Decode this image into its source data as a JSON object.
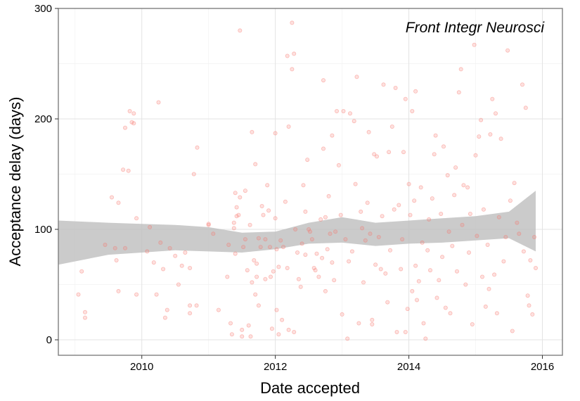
{
  "chart_data": {
    "type": "scatter",
    "title": "",
    "annotation": "Front Integr Neurosci",
    "xlabel": "Date accepted",
    "ylabel": "Acceptance delay (days)",
    "xlim": [
      2008.75,
      2016.3
    ],
    "ylim": [
      -14,
      300
    ],
    "x_ticks": [
      2010,
      2012,
      2014,
      2016
    ],
    "y_ticks": [
      0,
      100,
      200,
      300
    ],
    "grid": true,
    "point_color": "#F8766D",
    "ribbon_color": "#BEBEBE",
    "smooth": {
      "x": [
        2008.75,
        2009.5,
        2010.0,
        2010.5,
        2011.0,
        2011.5,
        2012.0,
        2012.5,
        2013.0,
        2013.5,
        2014.0,
        2014.5,
        2015.0,
        2015.5,
        2015.9
      ],
      "lower": [
        68,
        77,
        79,
        81,
        80,
        79,
        82,
        87,
        88,
        85,
        87,
        88,
        90,
        92,
        80
      ],
      "upper": [
        108,
        106,
        105,
        104,
        102,
        97,
        98,
        106,
        111,
        106,
        108,
        110,
        112,
        116,
        135
      ]
    },
    "points": [
      [
        2009.05,
        41
      ],
      [
        2009.1,
        62
      ],
      [
        2009.15,
        25
      ],
      [
        2009.15,
        20
      ],
      [
        2009.45,
        86
      ],
      [
        2009.55,
        129
      ],
      [
        2009.6,
        83
      ],
      [
        2009.62,
        72
      ],
      [
        2009.65,
        44
      ],
      [
        2009.65,
        124
      ],
      [
        2009.72,
        154
      ],
      [
        2009.75,
        192
      ],
      [
        2009.75,
        83
      ],
      [
        2009.8,
        153
      ],
      [
        2009.82,
        207
      ],
      [
        2009.85,
        197
      ],
      [
        2009.88,
        205
      ],
      [
        2009.88,
        196
      ],
      [
        2009.92,
        110
      ],
      [
        2009.92,
        41
      ],
      [
        2010.08,
        80
      ],
      [
        2010.12,
        102
      ],
      [
        2010.18,
        70
      ],
      [
        2010.22,
        41
      ],
      [
        2010.25,
        215
      ],
      [
        2010.28,
        88
      ],
      [
        2010.32,
        64
      ],
      [
        2010.35,
        20
      ],
      [
        2010.38,
        27
      ],
      [
        2010.42,
        83
      ],
      [
        2010.5,
        76
      ],
      [
        2010.55,
        50
      ],
      [
        2010.6,
        67
      ],
      [
        2010.65,
        79
      ],
      [
        2010.72,
        65
      ],
      [
        2010.72,
        31
      ],
      [
        2010.72,
        24
      ],
      [
        2010.78,
        150
      ],
      [
        2010.82,
        31
      ],
      [
        2010.83,
        174
      ],
      [
        2011.0,
        105
      ],
      [
        2011.0,
        104
      ],
      [
        2011.07,
        96
      ],
      [
        2011.15,
        27
      ],
      [
        2011.28,
        57
      ],
      [
        2011.3,
        86
      ],
      [
        2011.33,
        15
      ],
      [
        2011.35,
        5
      ],
      [
        2011.38,
        106
      ],
      [
        2011.38,
        101
      ],
      [
        2011.4,
        78
      ],
      [
        2011.4,
        133
      ],
      [
        2011.42,
        112
      ],
      [
        2011.42,
        120
      ],
      [
        2011.45,
        113
      ],
      [
        2011.47,
        129
      ],
      [
        2011.47,
        280
      ],
      [
        2011.5,
        9
      ],
      [
        2011.5,
        3
      ],
      [
        2011.52,
        84
      ],
      [
        2011.55,
        135
      ],
      [
        2011.55,
        91
      ],
      [
        2011.58,
        63
      ],
      [
        2011.6,
        13
      ],
      [
        2011.62,
        104
      ],
      [
        2011.63,
        3
      ],
      [
        2011.65,
        52
      ],
      [
        2011.65,
        188
      ],
      [
        2011.68,
        72
      ],
      [
        2011.7,
        41
      ],
      [
        2011.7,
        159
      ],
      [
        2011.72,
        69
      ],
      [
        2011.72,
        57
      ],
      [
        2011.75,
        92
      ],
      [
        2011.75,
        31
      ],
      [
        2011.78,
        84
      ],
      [
        2011.8,
        121
      ],
      [
        2011.82,
        113
      ],
      [
        2011.85,
        91
      ],
      [
        2011.85,
        55
      ],
      [
        2011.88,
        140
      ],
      [
        2011.9,
        117
      ],
      [
        2011.92,
        84
      ],
      [
        2011.93,
        57
      ],
      [
        2011.95,
        10
      ],
      [
        2011.97,
        62
      ],
      [
        2012.0,
        110
      ],
      [
        2012.0,
        187
      ],
      [
        2012.02,
        82
      ],
      [
        2012.02,
        27
      ],
      [
        2012.05,
        66
      ],
      [
        2012.05,
        5
      ],
      [
        2012.08,
        90
      ],
      [
        2012.1,
        18
      ],
      [
        2012.12,
        84
      ],
      [
        2012.15,
        125
      ],
      [
        2012.18,
        257
      ],
      [
        2012.18,
        65
      ],
      [
        2012.2,
        193
      ],
      [
        2012.2,
        9
      ],
      [
        2012.25,
        287
      ],
      [
        2012.25,
        245
      ],
      [
        2012.28,
        259
      ],
      [
        2012.28,
        7
      ],
      [
        2012.3,
        100
      ],
      [
        2012.33,
        79
      ],
      [
        2012.35,
        55
      ],
      [
        2012.38,
        48
      ],
      [
        2012.4,
        87
      ],
      [
        2012.42,
        140
      ],
      [
        2012.45,
        116
      ],
      [
        2012.45,
        77
      ],
      [
        2012.48,
        163
      ],
      [
        2012.5,
        100
      ],
      [
        2012.52,
        98
      ],
      [
        2012.55,
        91
      ],
      [
        2012.58,
        65
      ],
      [
        2012.6,
        63
      ],
      [
        2012.62,
        78
      ],
      [
        2012.65,
        57
      ],
      [
        2012.68,
        109
      ],
      [
        2012.7,
        74
      ],
      [
        2012.72,
        235
      ],
      [
        2012.72,
        173
      ],
      [
        2012.75,
        111
      ],
      [
        2012.75,
        44
      ],
      [
        2012.78,
        82
      ],
      [
        2012.8,
        130
      ],
      [
        2012.82,
        96
      ],
      [
        2012.85,
        185
      ],
      [
        2012.85,
        70
      ],
      [
        2012.88,
        54
      ],
      [
        2012.9,
        98
      ],
      [
        2012.92,
        207
      ],
      [
        2012.95,
        158
      ],
      [
        2012.98,
        113
      ],
      [
        2013.0,
        23
      ],
      [
        2013.02,
        207
      ],
      [
        2013.05,
        91
      ],
      [
        2013.08,
        1
      ],
      [
        2013.1,
        71
      ],
      [
        2013.12,
        205
      ],
      [
        2013.15,
        80
      ],
      [
        2013.18,
        198
      ],
      [
        2013.2,
        141
      ],
      [
        2013.22,
        238
      ],
      [
        2013.25,
        15
      ],
      [
        2013.28,
        116
      ],
      [
        2013.3,
        101
      ],
      [
        2013.32,
        52
      ],
      [
        2013.35,
        90
      ],
      [
        2013.38,
        124
      ],
      [
        2013.4,
        188
      ],
      [
        2013.42,
        96
      ],
      [
        2013.45,
        18
      ],
      [
        2013.45,
        14
      ],
      [
        2013.48,
        168
      ],
      [
        2013.5,
        68
      ],
      [
        2013.52,
        166
      ],
      [
        2013.55,
        93
      ],
      [
        2013.58,
        64
      ],
      [
        2013.6,
        112
      ],
      [
        2013.62,
        231
      ],
      [
        2013.65,
        60
      ],
      [
        2013.68,
        34
      ],
      [
        2013.7,
        170
      ],
      [
        2013.72,
        81
      ],
      [
        2013.75,
        193
      ],
      [
        2013.78,
        118
      ],
      [
        2013.8,
        228
      ],
      [
        2013.82,
        7
      ],
      [
        2013.85,
        122
      ],
      [
        2013.88,
        64
      ],
      [
        2013.9,
        91
      ],
      [
        2013.92,
        170
      ],
      [
        2013.95,
        218
      ],
      [
        2013.95,
        7
      ],
      [
        2013.98,
        28
      ],
      [
        2014.0,
        141
      ],
      [
        2014.02,
        113
      ],
      [
        2014.05,
        44
      ],
      [
        2014.05,
        207
      ],
      [
        2014.08,
        126
      ],
      [
        2014.1,
        225
      ],
      [
        2014.1,
        67
      ],
      [
        2014.12,
        36
      ],
      [
        2014.15,
        53
      ],
      [
        2014.18,
        138
      ],
      [
        2014.2,
        88
      ],
      [
        2014.22,
        15
      ],
      [
        2014.25,
        1
      ],
      [
        2014.28,
        81
      ],
      [
        2014.3,
        109
      ],
      [
        2014.32,
        63
      ],
      [
        2014.35,
        128
      ],
      [
        2014.38,
        168
      ],
      [
        2014.4,
        185
      ],
      [
        2014.42,
        38
      ],
      [
        2014.45,
        54
      ],
      [
        2014.48,
        114
      ],
      [
        2014.5,
        75
      ],
      [
        2014.52,
        175
      ],
      [
        2014.55,
        29
      ],
      [
        2014.58,
        149
      ],
      [
        2014.6,
        98
      ],
      [
        2014.62,
        24
      ],
      [
        2014.65,
        85
      ],
      [
        2014.68,
        131
      ],
      [
        2014.7,
        156
      ],
      [
        2014.72,
        62
      ],
      [
        2014.75,
        224
      ],
      [
        2014.78,
        245
      ],
      [
        2014.8,
        104
      ],
      [
        2014.82,
        140
      ],
      [
        2014.85,
        50
      ],
      [
        2014.88,
        138
      ],
      [
        2014.9,
        79
      ],
      [
        2014.92,
        114
      ],
      [
        2014.95,
        14
      ],
      [
        2014.98,
        267
      ],
      [
        2015.0,
        167
      ],
      [
        2015.02,
        94
      ],
      [
        2015.05,
        184
      ],
      [
        2015.08,
        199
      ],
      [
        2015.1,
        57
      ],
      [
        2015.12,
        118
      ],
      [
        2015.15,
        30
      ],
      [
        2015.18,
        86
      ],
      [
        2015.2,
        46
      ],
      [
        2015.22,
        186
      ],
      [
        2015.25,
        218
      ],
      [
        2015.28,
        59
      ],
      [
        2015.3,
        205
      ],
      [
        2015.32,
        24
      ],
      [
        2015.35,
        111
      ],
      [
        2015.38,
        182
      ],
      [
        2015.42,
        71
      ],
      [
        2015.45,
        93
      ],
      [
        2015.48,
        262
      ],
      [
        2015.52,
        126
      ],
      [
        2015.55,
        8
      ],
      [
        2015.58,
        142
      ],
      [
        2015.62,
        106
      ],
      [
        2015.65,
        96
      ],
      [
        2015.7,
        231
      ],
      [
        2015.72,
        80
      ],
      [
        2015.75,
        210
      ],
      [
        2015.78,
        40
      ],
      [
        2015.8,
        31
      ],
      [
        2015.82,
        72
      ],
      [
        2015.85,
        23
      ],
      [
        2015.88,
        93
      ],
      [
        2015.9,
        65
      ]
    ]
  }
}
